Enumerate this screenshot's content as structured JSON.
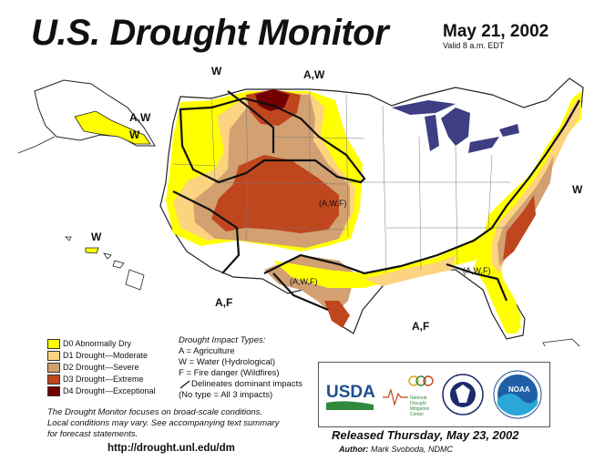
{
  "title": "U.S. Drought Monitor",
  "date": "May 21, 2002",
  "valid": "Valid 8 a.m. EDT",
  "legend": {
    "items": [
      {
        "label": "D0 Abnormally Dry",
        "color": "#ffff00"
      },
      {
        "label": "D1 Drought—Moderate",
        "color": "#fcd37f"
      },
      {
        "label": "D2 Drought—Severe",
        "color": "#d2a071"
      },
      {
        "label": "D3 Drought—Extreme",
        "color": "#c0461e"
      },
      {
        "label": "D4 Drought—Exceptional",
        "color": "#730000"
      }
    ]
  },
  "impacts": {
    "heading": "Drought Impact Types:",
    "lines": [
      "A = Agriculture",
      "W = Water (Hydrological)",
      "F = Fire danger (Wildfires)"
    ],
    "delineates": "Delineates dominant impacts",
    "no_type": "(No type = All 3 impacts)"
  },
  "note": {
    "line1": "The Drought Monitor focuses on broad-scale conditions.",
    "line2": "Local conditions may vary. See accompanying text summary",
    "line3": "for forecast statements."
  },
  "url": "http://drought.unl.edu/dm",
  "released": "Released Thursday, May 23, 2002",
  "author_label": "Author:",
  "author_name": "Mark Svoboda, NDMC",
  "map_labels": {
    "west_pnw": "W",
    "aw_north": "A,W",
    "aw_alaska": "A,W",
    "w_alaska": "W",
    "w_hawaii": "W",
    "awf_co": "(A,W,F)",
    "af_sw": "A,F",
    "awf_tx": "(A,W,F)",
    "af_tx": "A,F",
    "awf_se": "(A,W,F)",
    "w_east": "W"
  },
  "logos": {
    "usda": "USDA",
    "ndmc1": "National",
    "ndmc2": "Drought",
    "ndmc3": "Mitigation",
    "ndmc4": "Center",
    "noaa": "NOAA"
  },
  "colors": {
    "lakes": "#3e3e84",
    "d0": "#ffff00",
    "d1": "#fcd37f",
    "d2": "#d2a071",
    "d3": "#c0461e",
    "d4": "#730000"
  }
}
